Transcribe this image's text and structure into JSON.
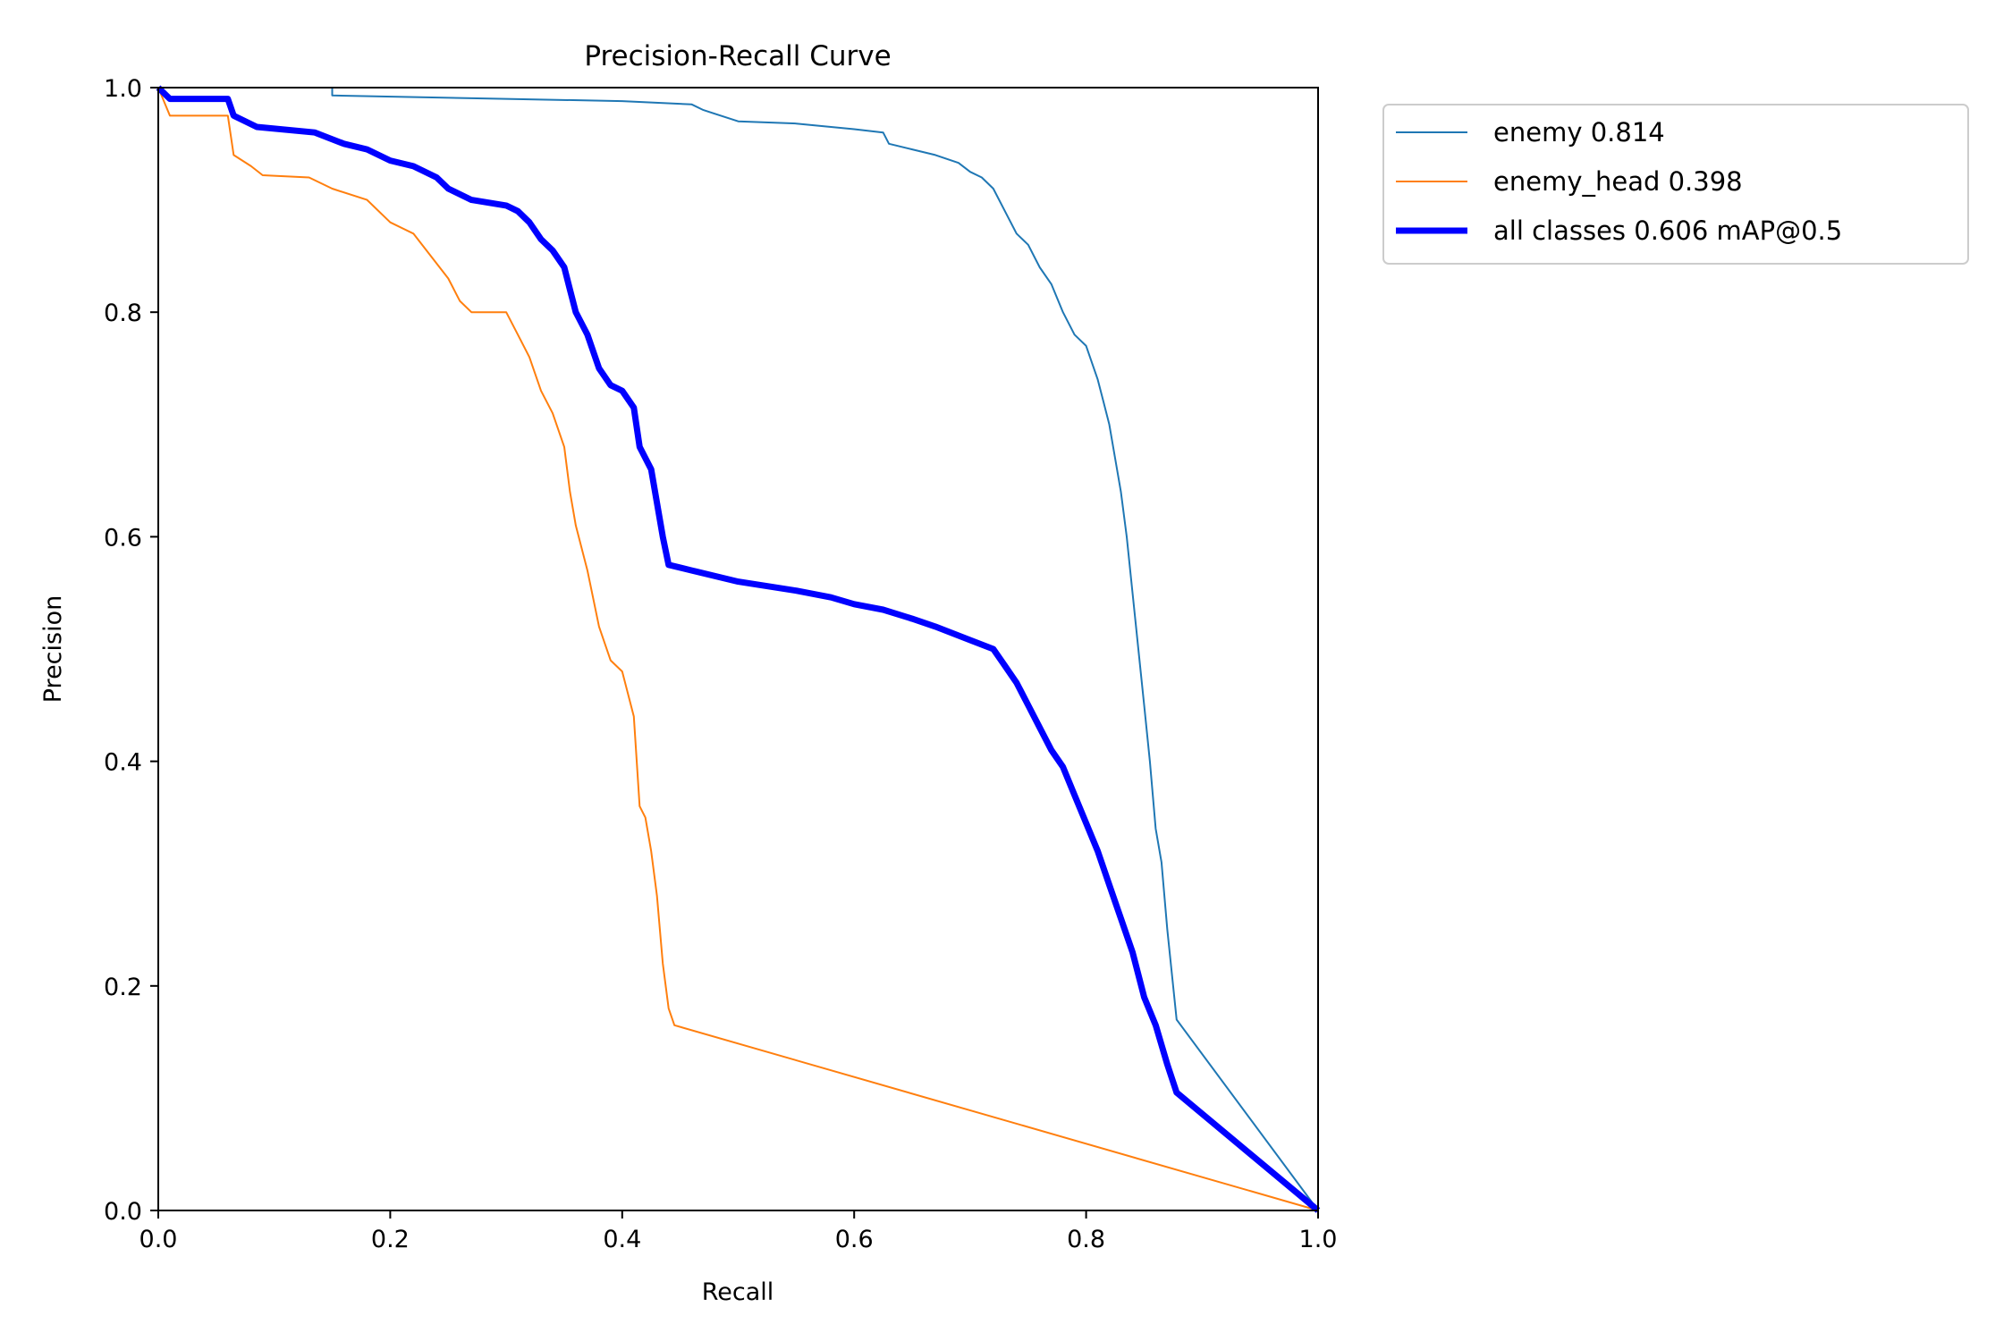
{
  "chart_data": {
    "type": "line",
    "title": "Precision-Recall Curve",
    "xlabel": "Recall",
    "ylabel": "Precision",
    "xlim": [
      0,
      1
    ],
    "ylim": [
      0,
      1
    ],
    "xticks": [
      0.0,
      0.2,
      0.4,
      0.6,
      0.8,
      1.0
    ],
    "yticks": [
      0.0,
      0.2,
      0.4,
      0.6,
      0.8,
      1.0
    ],
    "xtick_labels": [
      "0.0",
      "0.2",
      "0.4",
      "0.6",
      "0.8",
      "1.0"
    ],
    "ytick_labels": [
      "0.0",
      "0.2",
      "0.4",
      "0.6",
      "0.8",
      "1.0"
    ],
    "grid": false,
    "legend_position": "outside-upper-right",
    "series": [
      {
        "name": "enemy 0.814",
        "color": "#1f77b4",
        "line_width": "thin",
        "points": [
          [
            0.0,
            1.0
          ],
          [
            0.15,
            1.0
          ],
          [
            0.15,
            0.993
          ],
          [
            0.3,
            0.99
          ],
          [
            0.4,
            0.988
          ],
          [
            0.46,
            0.985
          ],
          [
            0.47,
            0.98
          ],
          [
            0.5,
            0.97
          ],
          [
            0.55,
            0.968
          ],
          [
            0.6,
            0.963
          ],
          [
            0.625,
            0.96
          ],
          [
            0.63,
            0.95
          ],
          [
            0.65,
            0.945
          ],
          [
            0.67,
            0.94
          ],
          [
            0.69,
            0.933
          ],
          [
            0.7,
            0.925
          ],
          [
            0.71,
            0.92
          ],
          [
            0.72,
            0.91
          ],
          [
            0.73,
            0.89
          ],
          [
            0.74,
            0.87
          ],
          [
            0.75,
            0.86
          ],
          [
            0.76,
            0.84
          ],
          [
            0.77,
            0.825
          ],
          [
            0.78,
            0.8
          ],
          [
            0.79,
            0.78
          ],
          [
            0.8,
            0.77
          ],
          [
            0.81,
            0.74
          ],
          [
            0.815,
            0.72
          ],
          [
            0.82,
            0.7
          ],
          [
            0.825,
            0.67
          ],
          [
            0.83,
            0.64
          ],
          [
            0.835,
            0.6
          ],
          [
            0.84,
            0.55
          ],
          [
            0.845,
            0.5
          ],
          [
            0.85,
            0.45
          ],
          [
            0.855,
            0.4
          ],
          [
            0.86,
            0.34
          ],
          [
            0.865,
            0.31
          ],
          [
            0.87,
            0.25
          ],
          [
            0.875,
            0.2
          ],
          [
            0.878,
            0.17
          ],
          [
            1.0,
            0.0
          ]
        ]
      },
      {
        "name": "enemy_head 0.398",
        "color": "#ff7f0e",
        "line_width": "thin",
        "points": [
          [
            0.0,
            1.0
          ],
          [
            0.01,
            0.975
          ],
          [
            0.06,
            0.975
          ],
          [
            0.065,
            0.94
          ],
          [
            0.08,
            0.93
          ],
          [
            0.09,
            0.922
          ],
          [
            0.13,
            0.92
          ],
          [
            0.15,
            0.91
          ],
          [
            0.18,
            0.9
          ],
          [
            0.2,
            0.88
          ],
          [
            0.22,
            0.87
          ],
          [
            0.235,
            0.85
          ],
          [
            0.25,
            0.83
          ],
          [
            0.26,
            0.81
          ],
          [
            0.27,
            0.8
          ],
          [
            0.3,
            0.8
          ],
          [
            0.31,
            0.78
          ],
          [
            0.32,
            0.76
          ],
          [
            0.33,
            0.73
          ],
          [
            0.34,
            0.71
          ],
          [
            0.35,
            0.68
          ],
          [
            0.355,
            0.64
          ],
          [
            0.36,
            0.61
          ],
          [
            0.37,
            0.57
          ],
          [
            0.38,
            0.52
          ],
          [
            0.39,
            0.49
          ],
          [
            0.4,
            0.48
          ],
          [
            0.41,
            0.44
          ],
          [
            0.415,
            0.36
          ],
          [
            0.42,
            0.35
          ],
          [
            0.425,
            0.32
          ],
          [
            0.43,
            0.28
          ],
          [
            0.435,
            0.22
          ],
          [
            0.44,
            0.18
          ],
          [
            0.445,
            0.165
          ],
          [
            1.0,
            0.0
          ]
        ]
      },
      {
        "name": "all classes 0.606 mAP@0.5",
        "color": "#0000ff",
        "line_width": "thick",
        "points": [
          [
            0.0,
            1.0
          ],
          [
            0.01,
            0.99
          ],
          [
            0.06,
            0.99
          ],
          [
            0.065,
            0.975
          ],
          [
            0.085,
            0.965
          ],
          [
            0.135,
            0.96
          ],
          [
            0.16,
            0.95
          ],
          [
            0.18,
            0.945
          ],
          [
            0.2,
            0.935
          ],
          [
            0.22,
            0.93
          ],
          [
            0.24,
            0.92
          ],
          [
            0.25,
            0.91
          ],
          [
            0.27,
            0.9
          ],
          [
            0.3,
            0.895
          ],
          [
            0.31,
            0.89
          ],
          [
            0.32,
            0.88
          ],
          [
            0.33,
            0.865
          ],
          [
            0.34,
            0.855
          ],
          [
            0.35,
            0.84
          ],
          [
            0.355,
            0.82
          ],
          [
            0.36,
            0.8
          ],
          [
            0.37,
            0.78
          ],
          [
            0.38,
            0.75
          ],
          [
            0.39,
            0.735
          ],
          [
            0.4,
            0.73
          ],
          [
            0.41,
            0.715
          ],
          [
            0.415,
            0.68
          ],
          [
            0.425,
            0.66
          ],
          [
            0.43,
            0.63
          ],
          [
            0.435,
            0.6
          ],
          [
            0.44,
            0.575
          ],
          [
            0.46,
            0.57
          ],
          [
            0.5,
            0.56
          ],
          [
            0.55,
            0.552
          ],
          [
            0.58,
            0.546
          ],
          [
            0.6,
            0.54
          ],
          [
            0.625,
            0.535
          ],
          [
            0.65,
            0.527
          ],
          [
            0.67,
            0.52
          ],
          [
            0.7,
            0.508
          ],
          [
            0.72,
            0.5
          ],
          [
            0.73,
            0.485
          ],
          [
            0.74,
            0.47
          ],
          [
            0.75,
            0.45
          ],
          [
            0.76,
            0.43
          ],
          [
            0.77,
            0.41
          ],
          [
            0.78,
            0.395
          ],
          [
            0.79,
            0.37
          ],
          [
            0.8,
            0.345
          ],
          [
            0.81,
            0.32
          ],
          [
            0.82,
            0.29
          ],
          [
            0.83,
            0.26
          ],
          [
            0.84,
            0.23
          ],
          [
            0.85,
            0.19
          ],
          [
            0.86,
            0.165
          ],
          [
            0.87,
            0.13
          ],
          [
            0.878,
            0.105
          ],
          [
            1.0,
            0.0
          ]
        ]
      }
    ]
  }
}
